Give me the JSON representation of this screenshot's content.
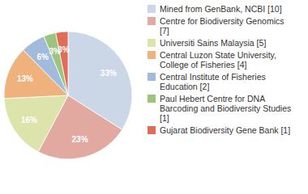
{
  "chart_data": {
    "type": "pie",
    "categories": [
      "Mined from GenBank, NCBI [10]",
      "Centre for Biodiversity Genomics [7]",
      "Universiti Sains Malaysia [5]",
      "Central Luzon State University, College of Fisheries [4]",
      "Central Institute of Fisheries Education [2]",
      "Paul Hebert Centre for DNA Barcoding and Biodiversity Studies [1]",
      "Gujarat Biodiversity Gene Bank [1]"
    ],
    "values": [
      33,
      23,
      16,
      13,
      6,
      3,
      3
    ],
    "value_labels": [
      "33%",
      "23%",
      "16%",
      "13%",
      "6%",
      "3%",
      "3%"
    ],
    "colors": [
      "#cbd7e6",
      "#e2a9a1",
      "#dde4ab",
      "#f0b27c",
      "#a2badb",
      "#9cc47f",
      "#e06d55"
    ],
    "data_labels": true,
    "legend": "right"
  }
}
